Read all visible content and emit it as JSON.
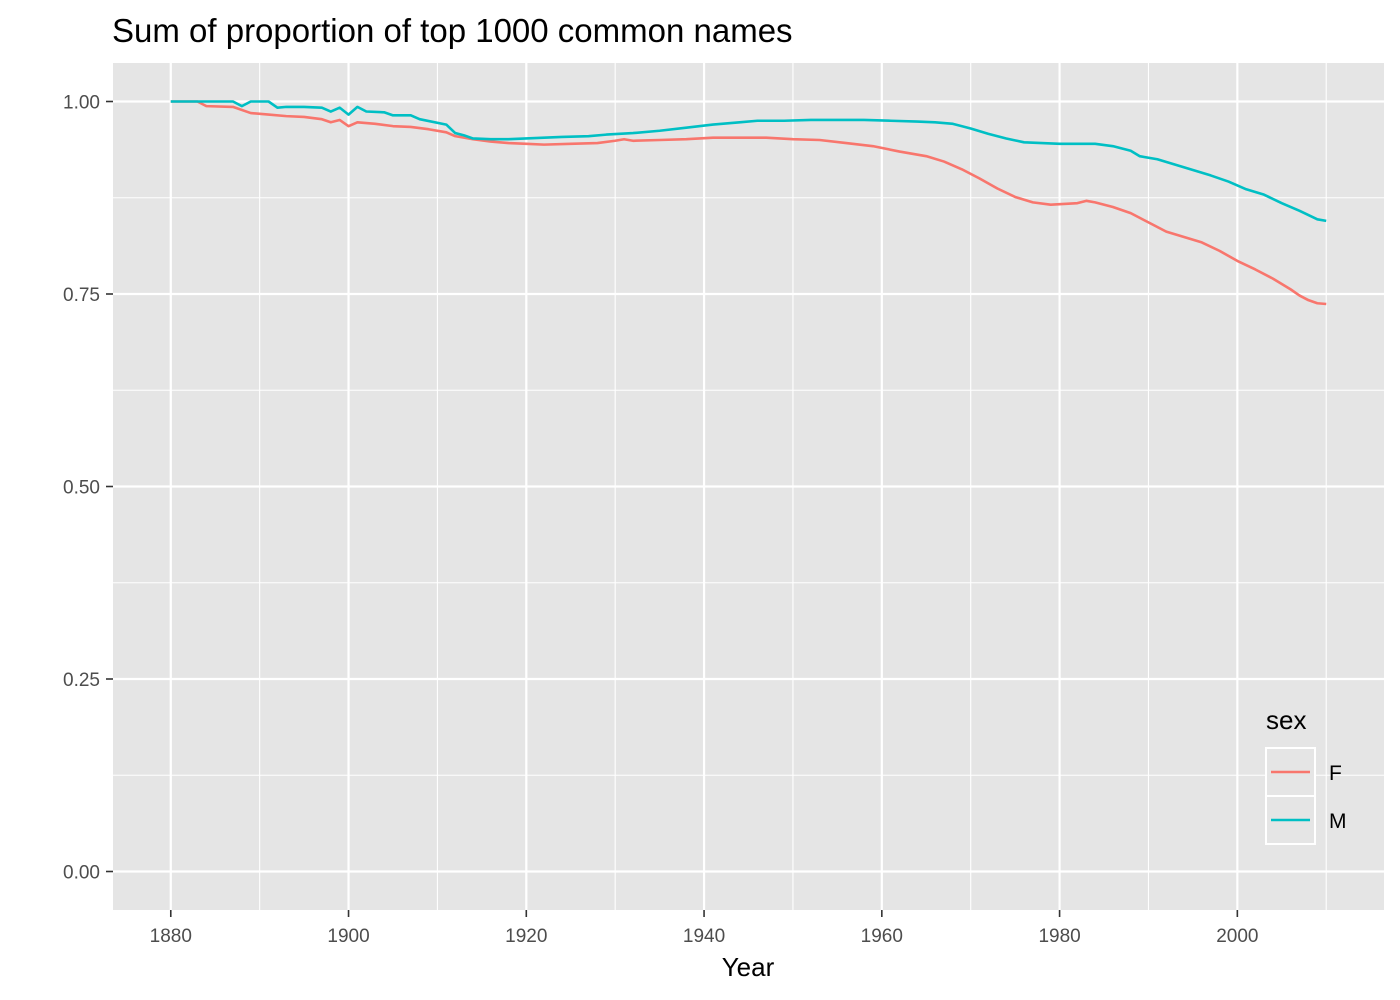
{
  "chart_data": {
    "type": "line",
    "title": "Sum of proportion of top 1000 common names",
    "xlabel": "Year",
    "ylabel": "",
    "xlim": [
      1873.5,
      2016.5
    ],
    "ylim": [
      -0.05,
      1.05
    ],
    "x_ticks": [
      1880,
      1900,
      1920,
      1940,
      1960,
      1980,
      2000
    ],
    "x_tick_labels": [
      "1880",
      "1900",
      "1920",
      "1940",
      "1960",
      "1980",
      "2000"
    ],
    "x_minor_ticks": [
      1890,
      1910,
      1930,
      1950,
      1970,
      1990,
      2010
    ],
    "y_ticks": [
      0,
      0.25,
      0.5,
      0.75,
      1.0
    ],
    "y_tick_labels": [
      "0.00",
      "0.25",
      "0.50",
      "0.75",
      "1.00"
    ],
    "y_minor_ticks": [
      0.125,
      0.375,
      0.625,
      0.875
    ],
    "grid": true,
    "legend": {
      "title": "sex",
      "position": "bottom-right (inside)"
    },
    "colors": {
      "panel": "#e5e5e5",
      "grid": "#ffffff",
      "F": "#f8766d",
      "M": "#00bfc4"
    },
    "series": [
      {
        "name": "F",
        "color": "#f8766d",
        "points": [
          [
            1880,
            1.0
          ],
          [
            1883,
            1.0
          ],
          [
            1884,
            0.994
          ],
          [
            1887,
            0.993
          ],
          [
            1889,
            0.985
          ],
          [
            1891,
            0.983
          ],
          [
            1893,
            0.981
          ],
          [
            1895,
            0.98
          ],
          [
            1897,
            0.977
          ],
          [
            1898,
            0.973
          ],
          [
            1899,
            0.976
          ],
          [
            1900,
            0.968
          ],
          [
            1901,
            0.973
          ],
          [
            1903,
            0.971
          ],
          [
            1905,
            0.968
          ],
          [
            1907,
            0.967
          ],
          [
            1909,
            0.964
          ],
          [
            1911,
            0.96
          ],
          [
            1912,
            0.955
          ],
          [
            1914,
            0.951
          ],
          [
            1916,
            0.948
          ],
          [
            1918,
            0.946
          ],
          [
            1920,
            0.945
          ],
          [
            1922,
            0.944
          ],
          [
            1925,
            0.945
          ],
          [
            1928,
            0.946
          ],
          [
            1930,
            0.949
          ],
          [
            1931,
            0.951
          ],
          [
            1932,
            0.949
          ],
          [
            1935,
            0.95
          ],
          [
            1938,
            0.951
          ],
          [
            1941,
            0.953
          ],
          [
            1944,
            0.953
          ],
          [
            1947,
            0.953
          ],
          [
            1950,
            0.951
          ],
          [
            1953,
            0.95
          ],
          [
            1956,
            0.946
          ],
          [
            1959,
            0.942
          ],
          [
            1962,
            0.935
          ],
          [
            1965,
            0.929
          ],
          [
            1967,
            0.922
          ],
          [
            1969,
            0.912
          ],
          [
            1971,
            0.9
          ],
          [
            1973,
            0.887
          ],
          [
            1975,
            0.876
          ],
          [
            1977,
            0.869
          ],
          [
            1979,
            0.866
          ],
          [
            1982,
            0.868
          ],
          [
            1983,
            0.871
          ],
          [
            1984,
            0.869
          ],
          [
            1986,
            0.863
          ],
          [
            1988,
            0.855
          ],
          [
            1990,
            0.843
          ],
          [
            1992,
            0.831
          ],
          [
            1994,
            0.824
          ],
          [
            1996,
            0.817
          ],
          [
            1998,
            0.806
          ],
          [
            2000,
            0.793
          ],
          [
            2002,
            0.782
          ],
          [
            2004,
            0.77
          ],
          [
            2006,
            0.756
          ],
          [
            2007,
            0.748
          ],
          [
            2008,
            0.742
          ],
          [
            2009,
            0.738
          ],
          [
            2010,
            0.737
          ]
        ]
      },
      {
        "name": "M",
        "color": "#00bfc4",
        "points": [
          [
            1880,
            1.0
          ],
          [
            1884,
            1.0
          ],
          [
            1887,
            1.0
          ],
          [
            1888,
            0.994
          ],
          [
            1889,
            1.0
          ],
          [
            1891,
            1.0
          ],
          [
            1892,
            0.992
          ],
          [
            1893,
            0.993
          ],
          [
            1895,
            0.993
          ],
          [
            1897,
            0.992
          ],
          [
            1898,
            0.987
          ],
          [
            1899,
            0.992
          ],
          [
            1900,
            0.983
          ],
          [
            1901,
            0.993
          ],
          [
            1902,
            0.987
          ],
          [
            1904,
            0.986
          ],
          [
            1905,
            0.982
          ],
          [
            1907,
            0.982
          ],
          [
            1908,
            0.977
          ],
          [
            1911,
            0.97
          ],
          [
            1912,
            0.959
          ],
          [
            1913,
            0.956
          ],
          [
            1914,
            0.952
          ],
          [
            1916,
            0.951
          ],
          [
            1918,
            0.951
          ],
          [
            1920,
            0.952
          ],
          [
            1922,
            0.953
          ],
          [
            1924,
            0.954
          ],
          [
            1927,
            0.955
          ],
          [
            1929,
            0.957
          ],
          [
            1932,
            0.959
          ],
          [
            1935,
            0.962
          ],
          [
            1938,
            0.966
          ],
          [
            1941,
            0.97
          ],
          [
            1944,
            0.973
          ],
          [
            1946,
            0.975
          ],
          [
            1949,
            0.975
          ],
          [
            1952,
            0.976
          ],
          [
            1955,
            0.976
          ],
          [
            1958,
            0.976
          ],
          [
            1961,
            0.975
          ],
          [
            1964,
            0.974
          ],
          [
            1966,
            0.973
          ],
          [
            1968,
            0.971
          ],
          [
            1970,
            0.965
          ],
          [
            1972,
            0.958
          ],
          [
            1974,
            0.952
          ],
          [
            1976,
            0.947
          ],
          [
            1978,
            0.946
          ],
          [
            1980,
            0.945
          ],
          [
            1982,
            0.945
          ],
          [
            1984,
            0.945
          ],
          [
            1986,
            0.942
          ],
          [
            1988,
            0.936
          ],
          [
            1989,
            0.929
          ],
          [
            1991,
            0.925
          ],
          [
            1993,
            0.918
          ],
          [
            1995,
            0.911
          ],
          [
            1997,
            0.904
          ],
          [
            1999,
            0.896
          ],
          [
            2001,
            0.886
          ],
          [
            2003,
            0.879
          ],
          [
            2005,
            0.868
          ],
          [
            2007,
            0.858
          ],
          [
            2009,
            0.847
          ],
          [
            2010,
            0.845
          ]
        ]
      }
    ]
  }
}
